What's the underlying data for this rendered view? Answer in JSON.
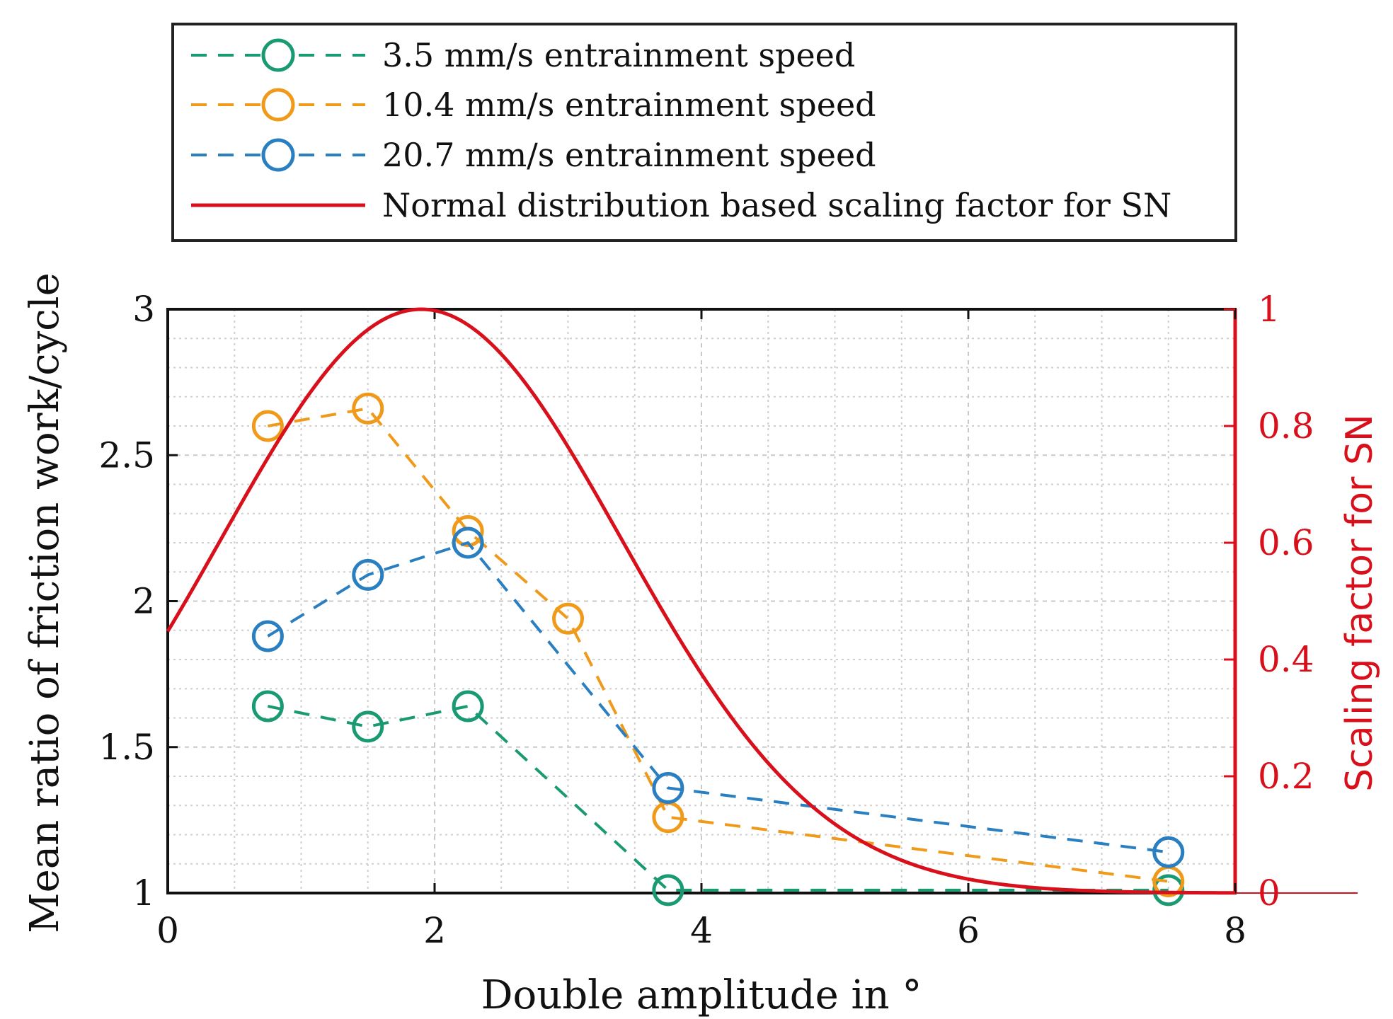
{
  "chart_data": {
    "type": "line",
    "xlabel": "Double amplitude in °",
    "ylabel_left": "Mean ratio of friction work/cycle",
    "ylabel_right": "Scaling factor for SN",
    "xlim": [
      0,
      8
    ],
    "ylim_left": [
      1,
      3
    ],
    "ylim_right": [
      0,
      1
    ],
    "xticks": [
      "0",
      "2",
      "4",
      "6",
      "8"
    ],
    "yticks_left": [
      "1",
      "1.5",
      "2",
      "2.5",
      "3"
    ],
    "yticks_right": [
      "0",
      "0.2",
      "0.4",
      "0.6",
      "0.8",
      "1"
    ],
    "grid": true,
    "legend_position": "top",
    "series": [
      {
        "name": "3.5 mm/s entrainment speed",
        "color": "#1a9a72",
        "axis": "left",
        "x": [
          0.75,
          1.5,
          2.25,
          3.75,
          7.5
        ],
        "y": [
          1.64,
          1.57,
          1.64,
          1.01,
          1.01
        ]
      },
      {
        "name": "10.4 mm/s entrainment speed",
        "color": "#ef9a1a",
        "axis": "left",
        "x": [
          0.75,
          1.5,
          2.25,
          3.0,
          3.75,
          7.5
        ],
        "y": [
          2.6,
          2.66,
          2.24,
          1.94,
          1.26,
          1.04
        ]
      },
      {
        "name": "20.7 mm/s entrainment speed",
        "color": "#2a7fc0",
        "axis": "left",
        "x": [
          0.75,
          1.5,
          2.25,
          3.75,
          7.5
        ],
        "y": [
          1.88,
          2.09,
          2.2,
          1.36,
          1.14
        ]
      },
      {
        "name": "Normal distribution based scaling factor for SN",
        "color": "#d8101c",
        "axis": "right",
        "function": "normal",
        "mean": 1.9,
        "sigma": 1.5
      }
    ]
  }
}
